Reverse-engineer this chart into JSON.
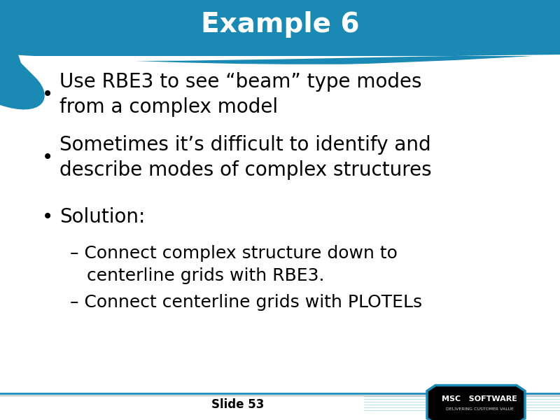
{
  "title": "Example 6",
  "title_color": "#ffffff",
  "title_bg_color": "#1a8ab5",
  "title_fontsize": 28,
  "slide_bg_color": "#ffffff",
  "bullet_color": "#000000",
  "bullet_fontsize": 20,
  "sub_bullet_fontsize": 18,
  "bullets": [
    "Use RBE3 to see “beam” type modes\nfrom a complex model",
    "Sometimes it’s difficult to identify and\ndescribe modes of complex structures",
    "Solution:"
  ],
  "sub_bullets": [
    "– Connect complex structure down to\n   centerline grids with RBE3.",
    "– Connect centerline grids with PLOTELs"
  ],
  "footer_text": "Slide 53",
  "footer_color": "#000000",
  "footer_fontsize": 12,
  "accent_blue": "#1a8ab5",
  "accent_light_blue": "#5bb8d4",
  "logo_bg": "#000000"
}
